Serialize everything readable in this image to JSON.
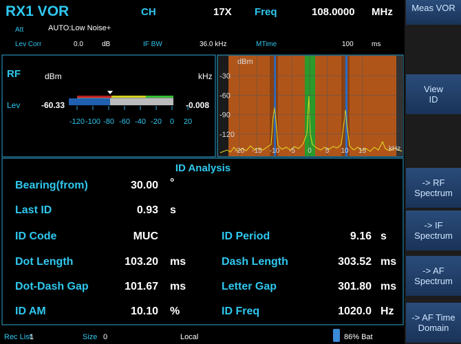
{
  "header": {
    "title": "RX1 VOR",
    "ch_label": "CH",
    "ch_value": "17X",
    "freq_label": "Freq",
    "freq_value": "108.0000",
    "freq_unit": "MHz",
    "att_label": "Att",
    "att_value": "AUTO:Low Noise+",
    "levcorr_label": "Lev Corr",
    "levcorr_value": "0.0",
    "levcorr_unit": "dB",
    "ifbw_label": "IF BW",
    "ifbw_value": "36.0 kHz",
    "mtime_label": "MTime",
    "mtime_value": "100",
    "mtime_unit": "ms"
  },
  "rf_panel": {
    "title": "RF",
    "unit_left": "dBm",
    "unit_right": "kHz",
    "lev_label": "Lev",
    "lev_value": "-60.33",
    "offset_value": "-0.008",
    "scale_ticks": [
      -120,
      -100,
      -80,
      -60,
      -40,
      -20,
      0,
      20
    ]
  },
  "spectrum": {
    "y_unit": "dBm",
    "yticks": [
      -30,
      -60,
      -90,
      -120
    ],
    "xticks": [
      -20,
      -15,
      -10,
      -5,
      0,
      5,
      10,
      15
    ],
    "x_unit": "kHz"
  },
  "id_analysis": {
    "title": "ID Analysis",
    "rows": [
      [
        {
          "label": "Bearing(from)",
          "value": "30.00",
          "unit": "°"
        }
      ],
      [
        {
          "label": "Last ID",
          "value": "0.93",
          "unit": "s"
        }
      ],
      [
        {
          "label": "ID Code",
          "value": "MUC",
          "unit": ""
        },
        {
          "label": "ID Period",
          "value": "9.16",
          "unit": "s"
        }
      ],
      [
        {
          "label": "Dot Length",
          "value": "103.20",
          "unit": "ms"
        },
        {
          "label": "Dash Length",
          "value": "303.52",
          "unit": "ms"
        }
      ],
      [
        {
          "label": "Dot-Dash Gap",
          "value": "101.67",
          "unit": "ms"
        },
        {
          "label": "Letter Gap",
          "value": "301.80",
          "unit": "ms"
        }
      ],
      [
        {
          "label": "ID AM",
          "value": "10.10",
          "unit": "%"
        },
        {
          "label": "ID Freq",
          "value": "1020.0",
          "unit": "Hz"
        }
      ]
    ]
  },
  "status": {
    "rec_label": "Rec List",
    "rec_value": "1",
    "size_label": "Size",
    "size_value": "0",
    "mode": "Local",
    "battery": "86% Bat"
  },
  "softkeys": [
    [
      "Meas VOR"
    ],
    [
      "View",
      "ID"
    ],
    [
      "-> RF",
      "Spectrum"
    ],
    [
      "-> IF",
      "Spectrum"
    ],
    [
      "-> AF",
      "Spectrum"
    ],
    [
      "-> AF Time",
      "Domain"
    ]
  ]
}
